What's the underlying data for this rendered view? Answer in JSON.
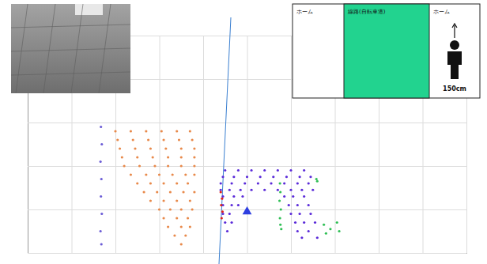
{
  "chart_data": {
    "type": "scatter",
    "xlim": [
      0,
      100
    ],
    "ylim": [
      0,
      50
    ],
    "xticks": [
      0,
      10,
      20,
      30,
      40,
      50,
      60,
      70,
      80,
      90,
      100
    ],
    "yticks": [
      0,
      10,
      20,
      30,
      40,
      50
    ],
    "grid": true,
    "tick_labels": false,
    "series": [
      {
        "color": "#e8894a",
        "marker": "circle",
        "x": [
          20,
          23.5,
          27,
          30.5,
          34,
          37,
          20.5,
          24,
          27.5,
          31,
          34.5,
          37.5,
          21,
          24.5,
          28,
          31.5,
          35,
          38,
          21.5,
          25,
          28.5,
          32,
          35,
          38,
          22,
          25.5,
          29,
          32,
          35,
          38,
          23.5,
          27,
          30,
          33,
          36,
          38,
          25,
          28,
          31,
          34,
          36.5,
          26.5,
          29.5,
          32.5,
          35.5,
          38,
          28,
          31,
          34,
          37,
          30,
          32.5,
          35,
          37.5,
          31,
          34,
          36.5,
          32,
          35,
          37,
          33.5,
          36,
          35
        ],
        "values": [
          28,
          28,
          28,
          28,
          28,
          28,
          26,
          26,
          26,
          26,
          26,
          26,
          24,
          24,
          24,
          24,
          24,
          24,
          22,
          22,
          22,
          22,
          22,
          22,
          20,
          20,
          20,
          20,
          20,
          20,
          18,
          18,
          18,
          18,
          18,
          18,
          16,
          16,
          16,
          16,
          16,
          14,
          14,
          14,
          14,
          14,
          12,
          12,
          12,
          12,
          10,
          10,
          10,
          10,
          8,
          8,
          8,
          6,
          6,
          6,
          4,
          4,
          2
        ]
      },
      {
        "color": "#5b2bd9",
        "marker": "circle",
        "x": [
          45,
          48,
          51,
          54,
          57,
          60,
          63,
          44.5,
          47,
          50,
          53,
          56,
          59,
          62,
          64.5,
          44,
          46.5,
          49.5,
          52.5,
          55.5,
          58.5,
          61.5,
          64,
          44,
          46,
          48.5,
          51,
          54,
          57,
          60,
          62.5,
          65,
          44.5,
          47,
          49,
          58.5,
          60.5,
          63,
          44.5,
          46.5,
          48,
          59.5,
          61.5,
          64,
          44.5,
          46,
          60,
          62,
          64.5,
          45,
          46.5,
          61,
          63,
          65.5,
          45.5,
          61.5,
          64,
          62.5,
          66
        ],
        "values": [
          19,
          19,
          19,
          19,
          19,
          19,
          19,
          17.5,
          17.5,
          17.5,
          17.5,
          17.5,
          17.5,
          17.5,
          17.5,
          16,
          16,
          16,
          16,
          16,
          16,
          16,
          16,
          14.5,
          14.5,
          14.5,
          14.5,
          14.5,
          14.5,
          14.5,
          14.5,
          14.5,
          13,
          13,
          13,
          13,
          13,
          13,
          11,
          11,
          11,
          11,
          11,
          11,
          9,
          9,
          9,
          9,
          9,
          7,
          7,
          7,
          7,
          7,
          5,
          5,
          5,
          3.5,
          3.5
        ]
      },
      {
        "color": "#6b5cd6",
        "marker": "circle",
        "x": [
          16.8,
          16.6,
          16.9,
          16.7,
          16.8,
          16.6,
          16.9,
          16.7
        ],
        "values": [
          2,
          5,
          9,
          13,
          17,
          21,
          25,
          29
        ]
      },
      {
        "color": "#e0201b",
        "marker": "circle",
        "x": [
          44,
          44.3,
          44.1,
          44.4,
          44.2
        ],
        "values": [
          14,
          12.5,
          11,
          9.5,
          8
        ]
      },
      {
        "color": "#2fbf55",
        "marker": "circle",
        "x": [
          57.5,
          57.6,
          57.4,
          57.7,
          57.5,
          57.6,
          57.8,
          65.8,
          66,
          67.5,
          69,
          70.5,
          68,
          71
        ],
        "values": [
          16,
          14,
          12,
          10,
          8,
          6.5,
          5.5,
          17,
          16.5,
          6.5,
          5.5,
          7,
          4.5,
          5
        ]
      },
      {
        "color": "#2d3ee0",
        "marker": "triangle",
        "x": [
          50
        ],
        "values": [
          9.5
        ]
      }
    ]
  },
  "diagram": {
    "columns": [
      {
        "label": "ホーム"
      },
      {
        "label": "線路(自転車道)"
      },
      {
        "label": "ホーム",
        "height_label": "150cm"
      }
    ]
  }
}
